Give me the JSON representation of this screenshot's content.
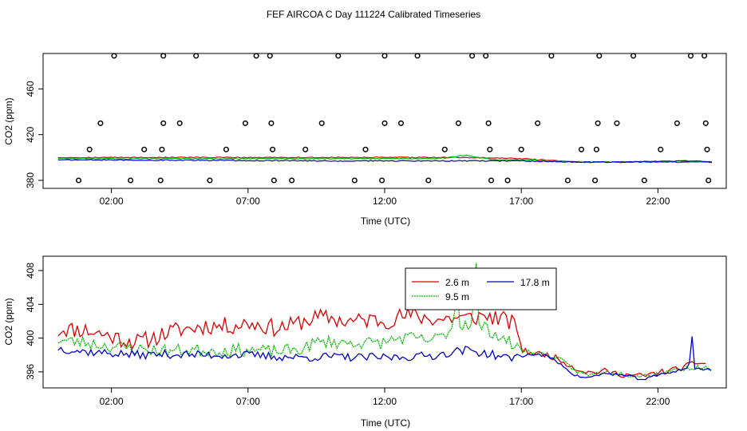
{
  "figure": {
    "title": "FEF AIRCOA C  Day 111224  Calibrated Timeseries"
  },
  "chart_data": [
    {
      "type": "scatter",
      "title": "",
      "xlabel": "Time (UTC)",
      "ylabel": "CO2 (ppm)",
      "x_ticks": [
        "02:00",
        "07:00",
        "12:00",
        "17:00",
        "22:00"
      ],
      "x_tick_hours": [
        2,
        7,
        12,
        17,
        22
      ],
      "y_ticks": [
        380,
        420,
        460
      ],
      "y_tick_labels": [
        "380",
        "420",
        "460"
      ],
      "xlim": [
        -0.5,
        24.5
      ],
      "ylim": [
        373,
        491
      ],
      "markers": {
        "description_values_hours_ppm": "open circles (calibration standards)",
        "points": [
          [
            0.8,
            380
          ],
          [
            1.2,
            407
          ],
          [
            1.6,
            430
          ],
          [
            2.1,
            489
          ],
          [
            2.7,
            380
          ],
          [
            3.2,
            407
          ],
          [
            3.8,
            380
          ],
          [
            3.85,
            407
          ],
          [
            3.9,
            430
          ],
          [
            3.9,
            489
          ],
          [
            4.5,
            430
          ],
          [
            5.1,
            489
          ],
          [
            5.6,
            380
          ],
          [
            6.2,
            407
          ],
          [
            6.9,
            430
          ],
          [
            7.3,
            489
          ],
          [
            7.8,
            489
          ],
          [
            7.85,
            430
          ],
          [
            7.9,
            407
          ],
          [
            7.95,
            380
          ],
          [
            8.6,
            380
          ],
          [
            9.1,
            407
          ],
          [
            9.7,
            430
          ],
          [
            10.3,
            489
          ],
          [
            10.9,
            380
          ],
          [
            11.3,
            407
          ],
          [
            11.9,
            380
          ],
          [
            12.0,
            430
          ],
          [
            12.0,
            489
          ],
          [
            12.6,
            430
          ],
          [
            13.2,
            489
          ],
          [
            13.6,
            380
          ],
          [
            14.2,
            407
          ],
          [
            14.7,
            430
          ],
          [
            15.2,
            489
          ],
          [
            15.7,
            489
          ],
          [
            15.8,
            430
          ],
          [
            15.85,
            407
          ],
          [
            15.9,
            380
          ],
          [
            16.5,
            380
          ],
          [
            17.0,
            407
          ],
          [
            17.6,
            430
          ],
          [
            18.1,
            489
          ],
          [
            18.7,
            380
          ],
          [
            19.2,
            407
          ],
          [
            19.7,
            380
          ],
          [
            19.75,
            407
          ],
          [
            19.8,
            430
          ],
          [
            19.85,
            489
          ],
          [
            20.5,
            430
          ],
          [
            21.1,
            489
          ],
          [
            21.5,
            380
          ],
          [
            22.1,
            407
          ],
          [
            22.7,
            430
          ],
          [
            23.2,
            489
          ],
          [
            23.7,
            489
          ],
          [
            23.75,
            430
          ],
          [
            23.8,
            407
          ],
          [
            23.85,
            380
          ]
        ]
      },
      "series": [
        {
          "color": "#dd0000",
          "x_start": 0.05,
          "x_end": 24.0,
          "keys": [
            [
              0,
              400
            ],
            [
              5,
              400
            ],
            [
              10,
              400
            ],
            [
              15,
              400
            ],
            [
              17,
              399
            ],
            [
              19,
              396
            ],
            [
              21,
              396
            ],
            [
              24,
              396
            ]
          ]
        },
        {
          "color": "#00bb00",
          "x_start": 0.05,
          "x_end": 24.0,
          "keys": [
            [
              0,
              399
            ],
            [
              10,
              399
            ],
            [
              14,
              399
            ],
            [
              15,
              402
            ],
            [
              16,
              398
            ],
            [
              17,
              398
            ],
            [
              19,
              396
            ],
            [
              21,
              396
            ],
            [
              23,
              397
            ],
            [
              24,
              396
            ]
          ]
        },
        {
          "color": "#0000cc",
          "x_start": 0.05,
          "x_end": 24.0,
          "keys": [
            [
              0,
              398
            ],
            [
              10,
              397
            ],
            [
              14,
              397
            ],
            [
              16,
              397
            ],
            [
              17,
              397
            ],
            [
              19,
              396
            ],
            [
              21,
              396
            ],
            [
              23,
              397
            ],
            [
              24,
              396
            ]
          ]
        }
      ]
    },
    {
      "type": "line",
      "title": "",
      "xlabel": "Time (UTC)",
      "ylabel": "CO2 (ppm)",
      "x_ticks": [
        "02:00",
        "07:00",
        "12:00",
        "17:00",
        "22:00"
      ],
      "x_tick_hours": [
        2,
        7,
        12,
        17,
        22
      ],
      "y_ticks": [
        396,
        400,
        404,
        408
      ],
      "y_tick_labels": [
        "396",
        "400",
        "404",
        "408"
      ],
      "xlim": [
        -0.5,
        24.5
      ],
      "ylim": [
        394.1,
        409.7
      ],
      "legend": {
        "placement": "top-center",
        "entries": [
          {
            "name": "2.6 m",
            "color": "#dd0000"
          },
          {
            "name": "17.8 m",
            "color": "#0000cc"
          },
          {
            "name": "9.5 m",
            "color": "#00bb00"
          }
        ]
      },
      "series": [
        {
          "name": "2.6 m",
          "color": "#dd0000",
          "keys": [
            [
              0.05,
              400.8
            ],
            [
              0.2,
              401.2
            ],
            [
              0.5,
              401.0
            ],
            [
              1.0,
              401.0
            ],
            [
              1.5,
              400.6
            ],
            [
              2.0,
              400.2
            ],
            [
              2.5,
              399.8
            ],
            [
              3.0,
              399.5
            ],
            [
              3.5,
              400.0
            ],
            [
              4.0,
              400.6
            ],
            [
              4.5,
              401.0
            ],
            [
              5.0,
              401.2
            ],
            [
              5.5,
              401.5
            ],
            [
              6.0,
              401.4
            ],
            [
              6.5,
              401.5
            ],
            [
              7.0,
              401.8
            ],
            [
              7.5,
              401.5
            ],
            [
              8.0,
              401.2
            ],
            [
              8.5,
              401.4
            ],
            [
              9.0,
              402.0
            ],
            [
              9.5,
              402.4
            ],
            [
              10.0,
              402.4
            ],
            [
              10.5,
              402.0
            ],
            [
              11.0,
              402.0
            ],
            [
              11.5,
              402.2
            ],
            [
              12.0,
              402.0
            ],
            [
              12.5,
              402.5
            ],
            [
              13.0,
              402.7
            ],
            [
              13.5,
              402.4
            ],
            [
              14.0,
              402.2
            ],
            [
              14.5,
              402.4
            ],
            [
              15.0,
              402.3
            ],
            [
              15.5,
              402.6
            ],
            [
              16.0,
              402.5
            ],
            [
              16.5,
              402.0
            ],
            [
              16.9,
              401.2
            ],
            [
              17.0,
              398.5
            ],
            [
              17.5,
              398.2
            ],
            [
              18.0,
              398.0
            ],
            [
              18.5,
              397.3
            ],
            [
              19.0,
              396.4
            ],
            [
              19.5,
              395.9
            ],
            [
              20.0,
              396.1
            ],
            [
              20.5,
              395.8
            ],
            [
              21.0,
              395.6
            ],
            [
              21.5,
              395.5
            ],
            [
              22.0,
              395.9
            ],
            [
              22.5,
              396.2
            ],
            [
              23.0,
              396.6
            ],
            [
              23.5,
              397.2
            ],
            [
              23.8,
              396.8
            ]
          ],
          "noise": 1.05,
          "seed": 11
        },
        {
          "name": "9.5 m",
          "color": "#00bb00",
          "keys": [
            [
              0.05,
              399.8
            ],
            [
              0.5,
              399.6
            ],
            [
              1.0,
              399.5
            ],
            [
              2.0,
              399.0
            ],
            [
              3.0,
              398.7
            ],
            [
              4.0,
              398.5
            ],
            [
              5.0,
              398.6
            ],
            [
              6.0,
              398.5
            ],
            [
              7.0,
              398.6
            ],
            [
              8.0,
              398.4
            ],
            [
              9.0,
              398.7
            ],
            [
              9.5,
              399.5
            ],
            [
              10.0,
              399.6
            ],
            [
              10.5,
              399.4
            ],
            [
              11.0,
              399.5
            ],
            [
              11.5,
              399.4
            ],
            [
              12.0,
              399.5
            ],
            [
              12.5,
              400.0
            ],
            [
              13.0,
              400.0
            ],
            [
              13.5,
              399.7
            ],
            [
              14.0,
              400.0
            ],
            [
              14.5,
              401.3
            ],
            [
              15.0,
              401.8
            ],
            [
              15.5,
              401.5
            ],
            [
              16.0,
              400.6
            ],
            [
              16.5,
              399.6
            ],
            [
              17.0,
              398.5
            ],
            [
              17.5,
              398.3
            ],
            [
              18.0,
              398.0
            ],
            [
              18.5,
              397.3
            ],
            [
              19.0,
              396.1
            ],
            [
              19.5,
              395.6
            ],
            [
              20.0,
              396.0
            ],
            [
              20.5,
              395.9
            ],
            [
              21.0,
              395.6
            ],
            [
              21.5,
              395.6
            ],
            [
              22.0,
              395.8
            ],
            [
              22.5,
              396.2
            ],
            [
              23.0,
              396.4
            ],
            [
              23.5,
              396.5
            ],
            [
              24.0,
              396.4
            ]
          ],
          "noise": 0.75,
          "seed": 23,
          "spikes": [
            [
              14.65,
              407.2
            ],
            [
              15.35,
              408.9
            ]
          ]
        },
        {
          "name": "17.8 m",
          "color": "#0000cc",
          "keys": [
            [
              0.05,
              398.8
            ],
            [
              0.5,
              398.6
            ],
            [
              1.0,
              398.4
            ],
            [
              2.0,
              398.2
            ],
            [
              3.0,
              398.0
            ],
            [
              4.0,
              398.1
            ],
            [
              5.0,
              398.0
            ],
            [
              6.0,
              398.0
            ],
            [
              7.0,
              398.0
            ],
            [
              8.0,
              397.8
            ],
            [
              9.0,
              397.7
            ],
            [
              10.0,
              397.8
            ],
            [
              11.0,
              397.7
            ],
            [
              12.0,
              397.7
            ],
            [
              13.0,
              397.8
            ],
            [
              14.0,
              398.0
            ],
            [
              14.5,
              398.4
            ],
            [
              15.0,
              398.6
            ],
            [
              16.0,
              398.0
            ],
            [
              16.5,
              397.6
            ],
            [
              17.0,
              397.9
            ],
            [
              17.5,
              398.1
            ],
            [
              18.0,
              397.8
            ],
            [
              18.5,
              396.8
            ],
            [
              19.0,
              395.5
            ],
            [
              19.5,
              395.3
            ],
            [
              20.0,
              395.8
            ],
            [
              20.5,
              395.7
            ],
            [
              21.0,
              395.4
            ],
            [
              21.5,
              395.1
            ],
            [
              22.0,
              395.6
            ],
            [
              22.5,
              396.0
            ],
            [
              23.0,
              396.4
            ],
            [
              23.5,
              396.3
            ],
            [
              24.0,
              396.3
            ]
          ],
          "noise": 0.5,
          "seed": 37,
          "spikes": [
            [
              23.3,
              400.2
            ]
          ]
        }
      ]
    }
  ]
}
